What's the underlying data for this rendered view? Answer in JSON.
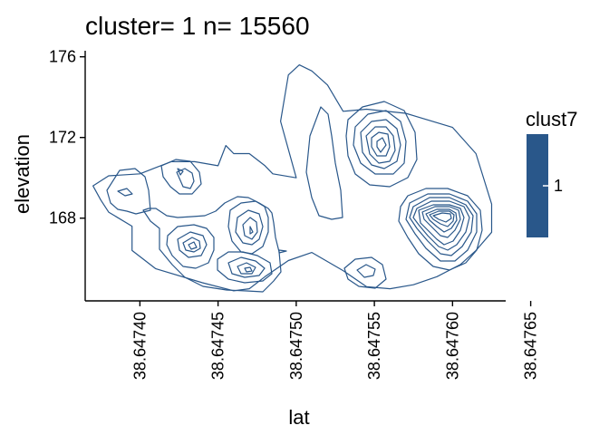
{
  "chart_data": {
    "type": "contour",
    "title": "cluster= 1 n= 15560",
    "xlabel": "lat",
    "ylabel": "elevation",
    "xlim": [
      38.647365,
      38.647634
    ],
    "ylim": [
      163.9,
      176.3
    ],
    "x_ticks": [
      "38.64740",
      "38.64745",
      "38.64750",
      "38.64755",
      "38.64760",
      "38.64765"
    ],
    "x_tick_values": [
      38.6474,
      38.64745,
      38.6475,
      38.64755,
      38.6476,
      38.64765
    ],
    "y_ticks": [
      "168",
      "172",
      "176"
    ],
    "y_tick_values": [
      168,
      172,
      176
    ],
    "grid": false,
    "legend": {
      "title": "clust7",
      "entries": [
        {
          "label": "1",
          "color": "#29578A"
        }
      ],
      "placement": "right"
    },
    "series": [
      {
        "color": "#29578A",
        "contours": [
          [
            [
              38.64746,
              164.4
            ],
            [
              38.64744,
              164.8
            ],
            [
              38.64741,
              165.5
            ],
            [
              38.647395,
              166.4
            ],
            [
              38.647395,
              167.6
            ],
            [
              38.64738,
              168.3
            ],
            [
              38.647375,
              168.9
            ],
            [
              38.64737,
              169.6
            ],
            [
              38.64738,
              170.1
            ],
            [
              38.6474,
              170.2
            ],
            [
              38.64741,
              170.5
            ],
            [
              38.64742,
              170.8
            ],
            [
              38.647435,
              170.8
            ],
            [
              38.64745,
              170.6
            ],
            [
              38.647455,
              171.6
            ],
            [
              38.64746,
              171.2
            ],
            [
              38.64747,
              171.2
            ],
            [
              38.64748,
              170.6
            ],
            [
              38.647485,
              170.2
            ],
            [
              38.6475,
              170.0
            ],
            [
              38.64749,
              172.8
            ],
            [
              38.647495,
              175.1
            ],
            [
              38.647502,
              175.6
            ],
            [
              38.64751,
              175.3
            ],
            [
              38.64752,
              174.6
            ],
            [
              38.64753,
              173.3
            ],
            [
              38.647545,
              173.4
            ],
            [
              38.64757,
              173.2
            ],
            [
              38.6476,
              172.5
            ],
            [
              38.647615,
              171.2
            ],
            [
              38.647625,
              168.7
            ],
            [
              38.647625,
              167.3
            ],
            [
              38.647615,
              166.4
            ],
            [
              38.647605,
              165.7
            ],
            [
              38.64759,
              165.1
            ],
            [
              38.647575,
              164.7
            ],
            [
              38.64756,
              164.5
            ],
            [
              38.647545,
              164.6
            ],
            [
              38.64753,
              165.4
            ],
            [
              38.64751,
              166.3
            ],
            [
              38.647495,
              165.9
            ],
            [
              38.64748,
              165.1
            ],
            [
              38.64747,
              164.5
            ],
            [
              38.64746,
              164.4
            ]
          ]
        ]
      }
    ]
  }
}
